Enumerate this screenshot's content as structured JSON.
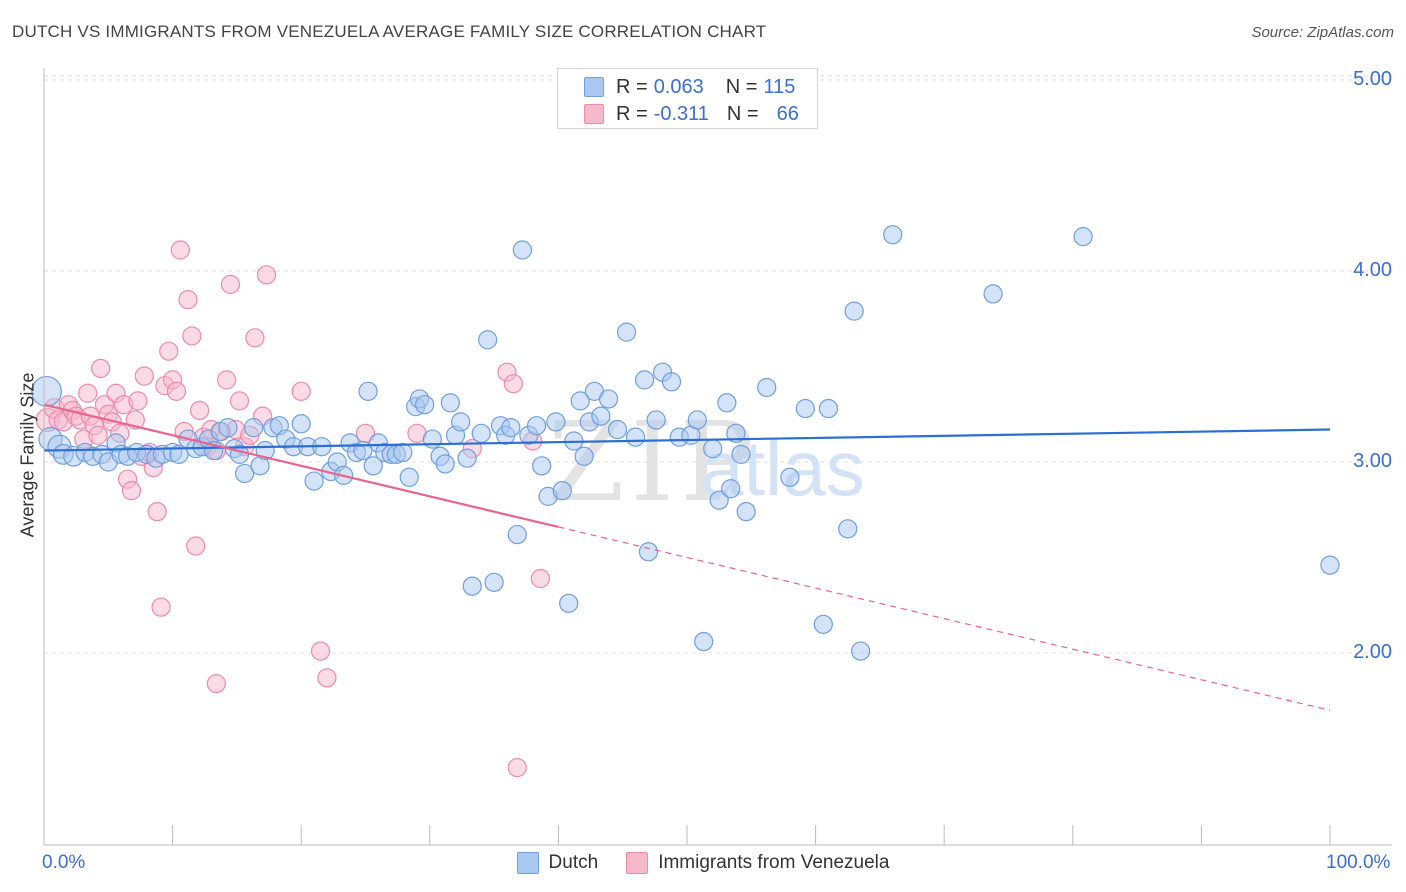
{
  "header": {
    "title": "DUTCH VS IMMIGRANTS FROM VENEZUELA AVERAGE FAMILY SIZE CORRELATION CHART",
    "source": "Source: ZipAtlas.com"
  },
  "watermark": {
    "zip": "ZIP",
    "atlas": "atlas"
  },
  "colors": {
    "dutch_fill": "#aac8f0",
    "dutch_stroke": "#6f9fe0",
    "dutch_line": "#2a6fd1",
    "ven_fill": "#f6b8cb",
    "ven_stroke": "#ee8aaa",
    "ven_line": "#e8648f",
    "grid": "#dddddd",
    "axis_label": "#3a6fd1"
  },
  "legend": {
    "rows": [
      {
        "r_label": "R =",
        "r_value": "0.063",
        "n_label": "N =",
        "n_value": "115"
      },
      {
        "r_label": "R =",
        "r_value": "-0.311",
        "n_label": "N =",
        "n_value": "66"
      }
    ]
  },
  "bottom_legend": {
    "dutch": "Dutch",
    "venezuela": "Immigrants from Venezuela"
  },
  "chart_data": {
    "type": "scatter",
    "ylabel": "Average Family Size",
    "xlim": [
      0,
      100
    ],
    "ylim": [
      1.0,
      5.1
    ],
    "x_tick_labels": [
      "0.0%",
      "100.0%"
    ],
    "y_ticks": [
      2.0,
      3.0,
      4.0,
      5.0
    ],
    "y_tick_labels": [
      "2.00",
      "3.00",
      "4.00",
      "5.00"
    ],
    "grid": true,
    "legend_position": "top-center",
    "series": [
      {
        "name": "Dutch",
        "trend": {
          "x": [
            0,
            100
          ],
          "y": [
            3.06,
            3.17
          ],
          "dashed_from": null
        },
        "points": [
          [
            0.2,
            3.37,
            18
          ],
          [
            0.5,
            3.12,
            14
          ],
          [
            1.2,
            3.08,
            14
          ],
          [
            1.5,
            3.04,
            12
          ],
          [
            2.3,
            3.03,
            12
          ],
          [
            3.2,
            3.05,
            11
          ],
          [
            3.8,
            3.03,
            11
          ],
          [
            4.5,
            3.04,
            11
          ],
          [
            5.0,
            3.0,
            11
          ],
          [
            5.6,
            3.1,
            11
          ],
          [
            6.0,
            3.04,
            11
          ],
          [
            6.5,
            3.03,
            11
          ],
          [
            7.2,
            3.05,
            11
          ],
          [
            8.0,
            3.04,
            11
          ],
          [
            8.7,
            3.02,
            11
          ],
          [
            9.2,
            3.04,
            11
          ],
          [
            10.0,
            3.05,
            11
          ],
          [
            10.5,
            3.04,
            11
          ],
          [
            11.2,
            3.12,
            11
          ],
          [
            11.8,
            3.07,
            11
          ],
          [
            12.3,
            3.08,
            11
          ],
          [
            12.8,
            3.12,
            11
          ],
          [
            13.2,
            3.06,
            11
          ],
          [
            13.7,
            3.16,
            11
          ],
          [
            14.3,
            3.18,
            11
          ],
          [
            14.8,
            3.07,
            11
          ],
          [
            15.2,
            3.04,
            11
          ],
          [
            15.6,
            2.94,
            11
          ],
          [
            16.3,
            3.18,
            11
          ],
          [
            16.8,
            2.98,
            11
          ],
          [
            17.2,
            3.06,
            11
          ],
          [
            17.8,
            3.18,
            11
          ],
          [
            18.3,
            3.19,
            11
          ],
          [
            18.8,
            3.12,
            11
          ],
          [
            19.4,
            3.08,
            11
          ],
          [
            20.0,
            3.2,
            11
          ],
          [
            20.5,
            3.08,
            11
          ],
          [
            21.0,
            2.9,
            11
          ],
          [
            21.6,
            3.08,
            11
          ],
          [
            22.3,
            2.95,
            11
          ],
          [
            22.8,
            3.0,
            11
          ],
          [
            23.3,
            2.93,
            11
          ],
          [
            23.8,
            3.1,
            11
          ],
          [
            24.3,
            3.05,
            11
          ],
          [
            24.8,
            3.06,
            11
          ],
          [
            25.2,
            3.37,
            11
          ],
          [
            25.6,
            2.98,
            11
          ],
          [
            26.0,
            3.1,
            11
          ],
          [
            26.5,
            3.05,
            11
          ],
          [
            27.0,
            3.04,
            11
          ],
          [
            27.4,
            3.04,
            11
          ],
          [
            27.9,
            3.05,
            11
          ],
          [
            28.4,
            2.92,
            11
          ],
          [
            28.9,
            3.29,
            11
          ],
          [
            29.2,
            3.33,
            11
          ],
          [
            29.6,
            3.3,
            11
          ],
          [
            30.2,
            3.12,
            11
          ],
          [
            30.8,
            3.03,
            11
          ],
          [
            31.2,
            2.99,
            11
          ],
          [
            31.6,
            3.31,
            11
          ],
          [
            32.0,
            3.14,
            11
          ],
          [
            32.4,
            3.21,
            11
          ],
          [
            32.9,
            3.02,
            11
          ],
          [
            33.3,
            2.35,
            11
          ],
          [
            34.0,
            3.15,
            11
          ],
          [
            34.5,
            3.64,
            11
          ],
          [
            35.0,
            2.37,
            11
          ],
          [
            35.5,
            3.19,
            11
          ],
          [
            35.9,
            3.14,
            11
          ],
          [
            36.3,
            3.18,
            11
          ],
          [
            36.8,
            2.62,
            11
          ],
          [
            37.2,
            4.11,
            11
          ],
          [
            37.7,
            3.14,
            11
          ],
          [
            38.3,
            3.19,
            11
          ],
          [
            38.7,
            2.98,
            11
          ],
          [
            39.2,
            2.82,
            11
          ],
          [
            39.8,
            3.21,
            11
          ],
          [
            40.3,
            2.85,
            11
          ],
          [
            40.8,
            2.26,
            11
          ],
          [
            41.2,
            3.11,
            11
          ],
          [
            41.7,
            3.32,
            11
          ],
          [
            42.0,
            3.03,
            11
          ],
          [
            42.4,
            3.21,
            11
          ],
          [
            42.8,
            3.37,
            11
          ],
          [
            43.3,
            3.24,
            11
          ],
          [
            43.9,
            3.33,
            11
          ],
          [
            44.6,
            3.17,
            11
          ],
          [
            45.3,
            3.68,
            11
          ],
          [
            46.0,
            3.13,
            11
          ],
          [
            46.7,
            3.43,
            11
          ],
          [
            47.0,
            2.53,
            11
          ],
          [
            47.6,
            3.22,
            11
          ],
          [
            48.1,
            3.47,
            11
          ],
          [
            48.8,
            3.42,
            11
          ],
          [
            49.4,
            3.13,
            11
          ],
          [
            50.3,
            3.14,
            11
          ],
          [
            50.8,
            3.22,
            11
          ],
          [
            51.3,
            2.06,
            11
          ],
          [
            52.0,
            3.07,
            11
          ],
          [
            52.5,
            2.8,
            11
          ],
          [
            53.1,
            3.31,
            11
          ],
          [
            53.4,
            2.86,
            11
          ],
          [
            53.8,
            3.15,
            11
          ],
          [
            54.2,
            3.04,
            11
          ],
          [
            54.6,
            2.74,
            11
          ],
          [
            56.2,
            3.39,
            11
          ],
          [
            58.0,
            2.92,
            11
          ],
          [
            59.2,
            3.28,
            11
          ],
          [
            60.6,
            2.15,
            11
          ],
          [
            61.0,
            3.28,
            11
          ],
          [
            62.5,
            2.65,
            11
          ],
          [
            63.0,
            3.79,
            11
          ],
          [
            63.5,
            2.01,
            11
          ],
          [
            66.0,
            4.19,
            11
          ],
          [
            73.8,
            3.88,
            11
          ],
          [
            80.8,
            4.18,
            11
          ],
          [
            100.0,
            2.46,
            11
          ]
        ]
      },
      {
        "name": "Immigrants from Venezuela",
        "trend": {
          "x": [
            0,
            100
          ],
          "y": [
            3.3,
            1.7
          ],
          "dashed_from": 40
        },
        "points": [
          [
            0.3,
            3.22,
            14
          ],
          [
            0.8,
            3.28,
            12
          ],
          [
            1.1,
            3.22,
            11
          ],
          [
            1.5,
            3.21,
            11
          ],
          [
            1.9,
            3.3,
            11
          ],
          [
            2.2,
            3.27,
            11
          ],
          [
            2.5,
            3.24,
            11
          ],
          [
            2.8,
            3.22,
            11
          ],
          [
            3.1,
            3.12,
            11
          ],
          [
            3.4,
            3.36,
            11
          ],
          [
            3.6,
            3.24,
            11
          ],
          [
            3.9,
            3.19,
            11
          ],
          [
            4.2,
            3.14,
            11
          ],
          [
            4.4,
            3.49,
            11
          ],
          [
            4.7,
            3.3,
            11
          ],
          [
            5.0,
            3.25,
            11
          ],
          [
            5.3,
            3.21,
            11
          ],
          [
            5.6,
            3.36,
            11
          ],
          [
            5.9,
            3.15,
            11
          ],
          [
            6.2,
            3.3,
            11
          ],
          [
            6.5,
            2.91,
            11
          ],
          [
            6.8,
            2.85,
            11
          ],
          [
            7.1,
            3.22,
            11
          ],
          [
            7.3,
            3.32,
            11
          ],
          [
            7.6,
            3.03,
            11
          ],
          [
            7.8,
            3.45,
            11
          ],
          [
            8.2,
            3.05,
            11
          ],
          [
            8.5,
            2.97,
            11
          ],
          [
            8.8,
            2.74,
            11
          ],
          [
            9.1,
            2.24,
            11
          ],
          [
            9.4,
            3.4,
            11
          ],
          [
            9.7,
            3.58,
            11
          ],
          [
            10.0,
            3.43,
            11
          ],
          [
            10.3,
            3.37,
            11
          ],
          [
            10.6,
            4.11,
            11
          ],
          [
            10.9,
            3.16,
            11
          ],
          [
            11.2,
            3.85,
            11
          ],
          [
            11.5,
            3.66,
            11
          ],
          [
            11.8,
            2.56,
            11
          ],
          [
            12.1,
            3.27,
            11
          ],
          [
            12.4,
            3.13,
            11
          ],
          [
            12.7,
            3.08,
            11
          ],
          [
            13.0,
            3.17,
            11
          ],
          [
            13.4,
            3.06,
            11
          ],
          [
            13.8,
            3.16,
            11
          ],
          [
            13.4,
            1.84,
            11
          ],
          [
            14.2,
            3.43,
            11
          ],
          [
            14.5,
            3.93,
            11
          ],
          [
            14.9,
            3.17,
            11
          ],
          [
            15.2,
            3.32,
            11
          ],
          [
            15.6,
            3.08,
            11
          ],
          [
            16.0,
            3.14,
            11
          ],
          [
            16.4,
            3.65,
            11
          ],
          [
            17.3,
            3.98,
            11
          ],
          [
            20.0,
            3.37,
            11
          ],
          [
            21.5,
            2.01,
            11
          ],
          [
            22.0,
            1.87,
            11
          ],
          [
            25.0,
            3.15,
            11
          ],
          [
            29.0,
            3.15,
            11
          ],
          [
            33.3,
            3.07,
            11
          ],
          [
            36.0,
            3.47,
            11
          ],
          [
            36.5,
            3.41,
            11
          ],
          [
            38.0,
            3.11,
            11
          ],
          [
            38.6,
            2.39,
            11
          ],
          [
            36.8,
            1.4,
            11
          ],
          [
            17.0,
            3.24,
            11
          ]
        ]
      }
    ]
  }
}
